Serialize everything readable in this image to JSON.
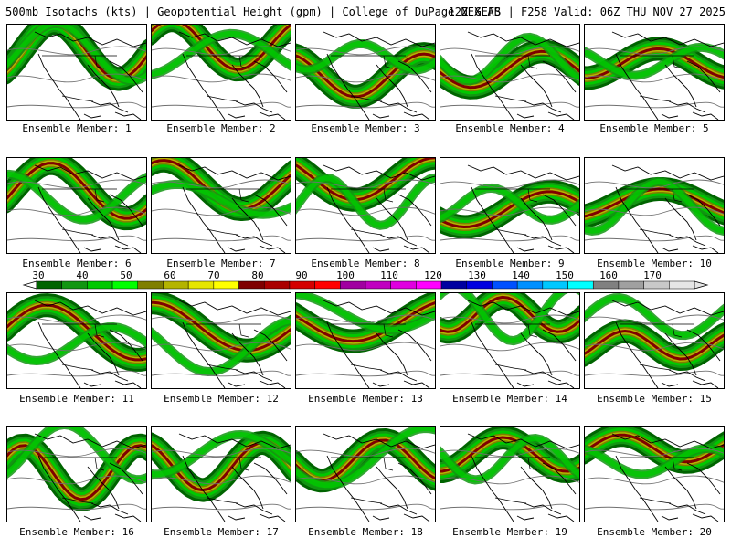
{
  "header": {
    "left": "500mb Isotachs (kts) | Geopotential Height (gpm) | College of DuPage NEXLAB",
    "right": "12Z GEFS | F258 Valid: 06Z THU NOV 27 2025"
  },
  "colorbar": {
    "ticks": [
      "30",
      "40",
      "50",
      "60",
      "70",
      "80",
      "90",
      "100",
      "110",
      "120",
      "130",
      "140",
      "150",
      "160",
      "170"
    ],
    "colors": [
      "#006400",
      "#129612",
      "#00c800",
      "#00ff00",
      "#7f7f00",
      "#b4b400",
      "#e6e600",
      "#ffff00",
      "#7f0000",
      "#aa0000",
      "#d40000",
      "#ff0000",
      "#a000a0",
      "#c000c0",
      "#e000e0",
      "#ff00ff",
      "#0000a0",
      "#0000e0",
      "#0050ff",
      "#0090ff",
      "#00c8ff",
      "#00ffff",
      "#808080",
      "#a0a0a0",
      "#c8c8c8",
      "#e6e6e6"
    ]
  },
  "members": [
    {
      "label": "Ensemble Member: 1"
    },
    {
      "label": "Ensemble Member: 2"
    },
    {
      "label": "Ensemble Member: 3"
    },
    {
      "label": "Ensemble Member: 4"
    },
    {
      "label": "Ensemble Member: 5"
    },
    {
      "label": "Ensemble Member: 6"
    },
    {
      "label": "Ensemble Member: 7"
    },
    {
      "label": "Ensemble Member: 8"
    },
    {
      "label": "Ensemble Member: 9"
    },
    {
      "label": "Ensemble Member: 10"
    },
    {
      "label": "Ensemble Member: 11"
    },
    {
      "label": "Ensemble Member: 12"
    },
    {
      "label": "Ensemble Member: 13"
    },
    {
      "label": "Ensemble Member: 14"
    },
    {
      "label": "Ensemble Member: 15"
    },
    {
      "label": "Ensemble Member: 16"
    },
    {
      "label": "Ensemble Member: 17"
    },
    {
      "label": "Ensemble Member: 18"
    },
    {
      "label": "Ensemble Member: 19"
    },
    {
      "label": "Ensemble Member: 20"
    }
  ]
}
